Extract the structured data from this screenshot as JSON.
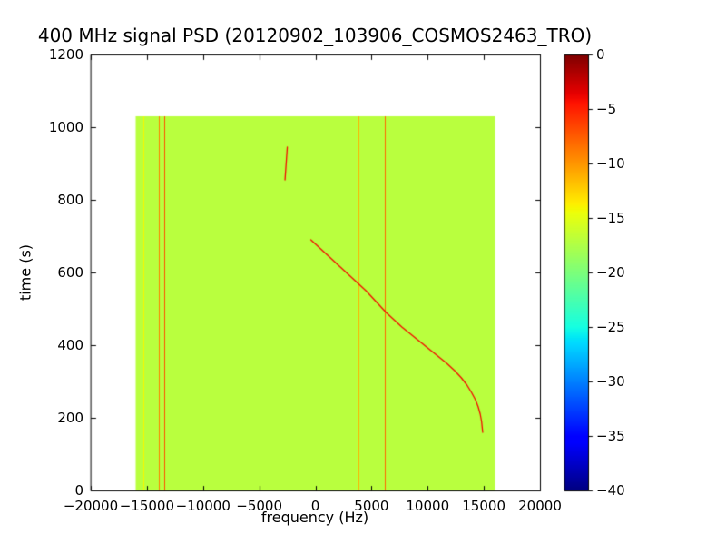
{
  "chart_data": {
    "type": "heatmap",
    "title": "400 MHz signal PSD (20120902_103906_COSMOS2463_TRO)",
    "xlabel": "frequency (Hz)",
    "ylabel": "time (s)",
    "xlim": [
      -20000,
      20000
    ],
    "ylim": [
      0,
      1200
    ],
    "grid": false,
    "colormap": "jet",
    "colorbar": {
      "position": "right",
      "range": [
        -40,
        0
      ],
      "tick_values": [
        0,
        -5,
        -10,
        -15,
        -20,
        -25,
        -30,
        -35,
        -40
      ],
      "tick_labels": [
        "0",
        "−5",
        "−10",
        "−15",
        "−20",
        "−25",
        "−30",
        "−35",
        "−40"
      ]
    },
    "x_ticks": {
      "values": [
        -20000,
        -15000,
        -10000,
        -5000,
        0,
        5000,
        10000,
        15000,
        20000
      ],
      "labels": [
        "−20000",
        "−15000",
        "−10000",
        "−5000",
        "0",
        "5000",
        "10000",
        "15000",
        "20000"
      ]
    },
    "y_ticks": {
      "values": [
        0,
        200,
        400,
        600,
        800,
        1000,
        1200
      ],
      "labels": [
        "0",
        "200",
        "400",
        "600",
        "800",
        "1000",
        "1200"
      ]
    },
    "data_extent": {
      "freq_hz": [
        -16000,
        16000
      ],
      "time_s": [
        0,
        1030
      ]
    },
    "background_level_db": -17,
    "features": {
      "vertical_interference_lines": [
        {
          "freq_hz": -15300,
          "level_db": -14,
          "width_hz": 60
        },
        {
          "freq_hz": -13900,
          "level_db": -9,
          "width_hz": 80
        },
        {
          "freq_hz": -13400,
          "level_db": -7,
          "width_hz": 90
        },
        {
          "freq_hz": 3900,
          "level_db": -11,
          "width_hz": 70
        },
        {
          "freq_hz": 6200,
          "level_db": -8,
          "width_hz": 90
        }
      ],
      "doppler_track": {
        "level_db": -4,
        "points_t_f": [
          [
            690,
            -400
          ],
          [
            670,
            300
          ],
          [
            650,
            1000
          ],
          [
            630,
            1700
          ],
          [
            610,
            2400
          ],
          [
            590,
            3100
          ],
          [
            570,
            3800
          ],
          [
            550,
            4500
          ],
          [
            530,
            5100
          ],
          [
            510,
            5700
          ],
          [
            490,
            6300
          ],
          [
            470,
            7000
          ],
          [
            450,
            7700
          ],
          [
            430,
            8500
          ],
          [
            410,
            9300
          ],
          [
            390,
            10100
          ],
          [
            370,
            10900
          ],
          [
            350,
            11700
          ],
          [
            330,
            12400
          ],
          [
            310,
            13000
          ],
          [
            290,
            13500
          ],
          [
            270,
            13900
          ],
          [
            250,
            14250
          ],
          [
            230,
            14500
          ],
          [
            210,
            14680
          ],
          [
            190,
            14800
          ],
          [
            160,
            14900
          ]
        ]
      },
      "short_track": {
        "level_db": -4,
        "points_t_f": [
          [
            945,
            -2500
          ],
          [
            855,
            -2700
          ]
        ]
      }
    }
  }
}
